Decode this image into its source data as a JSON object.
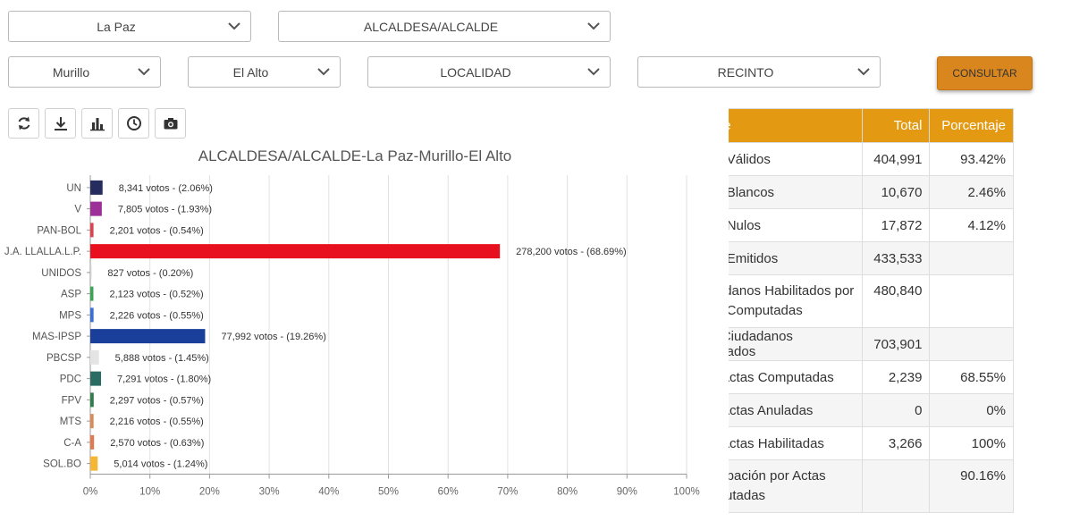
{
  "filters": {
    "departamento": "La Paz",
    "cargo": "ALCALDESA/ALCALDE",
    "provincia": "Murillo",
    "municipio": "El Alto",
    "localidad": "LOCALIDAD",
    "recinto": "RECINTO",
    "consultar_label": "CONSULTAR"
  },
  "toolbar": {
    "icons": [
      "refresh-icon",
      "download-icon",
      "bar-chart-icon",
      "clock-icon",
      "camera-icon"
    ]
  },
  "colors": {
    "accent": "#d9861e",
    "table_header": "#e39a12"
  },
  "chart_data": {
    "type": "bar",
    "orientation": "horizontal",
    "title": "ALCALDESA/ALCALDE-La Paz-Murillo-El Alto",
    "categories": [
      "UN",
      "V",
      "PAN-BOL",
      "J.A. LLALLA.L.P.",
      "UNIDOS",
      "ASP",
      "MPS",
      "MAS-IPSP",
      "PBCSP",
      "PDC",
      "FPV",
      "MTS",
      "C-A",
      "SOL.BO"
    ],
    "values": [
      2.06,
      1.93,
      0.54,
      68.69,
      0.2,
      0.52,
      0.55,
      19.26,
      1.45,
      1.8,
      0.57,
      0.55,
      0.63,
      1.24
    ],
    "labels": [
      "8,341 votos - (2.06%)",
      "7,805 votos - (1.93%)",
      "2,201 votos - (0.54%)",
      "278,200 votos - (68.69%)",
      "827 votos - (0.20%)",
      "2,123 votos - (0.52%)",
      "2,226 votos - (0.55%)",
      "77,992 votos - (19.26%)",
      "5,888 votos - (1.45%)",
      "7,291 votos - (1.80%)",
      "2,297 votos - (0.57%)",
      "2,216 votos - (0.55%)",
      "2,570 votos - (0.63%)",
      "5,014 votos - (1.24%)"
    ],
    "colors": [
      "#262d5e",
      "#9c2f98",
      "#e04050",
      "#e8101e",
      "#cfcfcf",
      "#3aa655",
      "#3a6fd8",
      "#1a3f9a",
      "#e4e4e4",
      "#2a6b64",
      "#2e7d4a",
      "#d98a58",
      "#e07a50",
      "#f5b733"
    ],
    "xticks": [
      "0%",
      "10%",
      "20%",
      "30%",
      "40%",
      "50%",
      "60%",
      "70%",
      "80%",
      "90%",
      "100%"
    ],
    "xlim": [
      0,
      100
    ],
    "grid": true
  },
  "table": {
    "headers": [
      "Detalle",
      "Total",
      "Porcentaje"
    ],
    "rows": [
      {
        "detalle": "Votos Válidos",
        "total": "404,991",
        "pct": "93.42%"
      },
      {
        "detalle": "Votos Blancos",
        "total": "10,670",
        "pct": "2.46%"
      },
      {
        "detalle": "Votos Nulos",
        "total": "17,872",
        "pct": "4.12%"
      },
      {
        "detalle": "Votos Emitidos",
        "total": "433,533",
        "pct": ""
      },
      {
        "detalle": "Ciudadanos Habilitados por Actas Computadas",
        "total": "480,840",
        "pct": ""
      },
      {
        "detalle": "Total Ciudadanos Habilitados",
        "total": "703,901",
        "pct": ""
      },
      {
        "detalle": "Total Actas Computadas",
        "total": "2,239",
        "pct": "68.55%"
      },
      {
        "detalle": "Total Actas Anuladas",
        "total": "0",
        "pct": "0%"
      },
      {
        "detalle": "Total Actas Habilitadas",
        "total": "3,266",
        "pct": "100%"
      },
      {
        "detalle": "Participación por Actas Computadas",
        "total": "",
        "pct": "90.16%"
      }
    ]
  }
}
